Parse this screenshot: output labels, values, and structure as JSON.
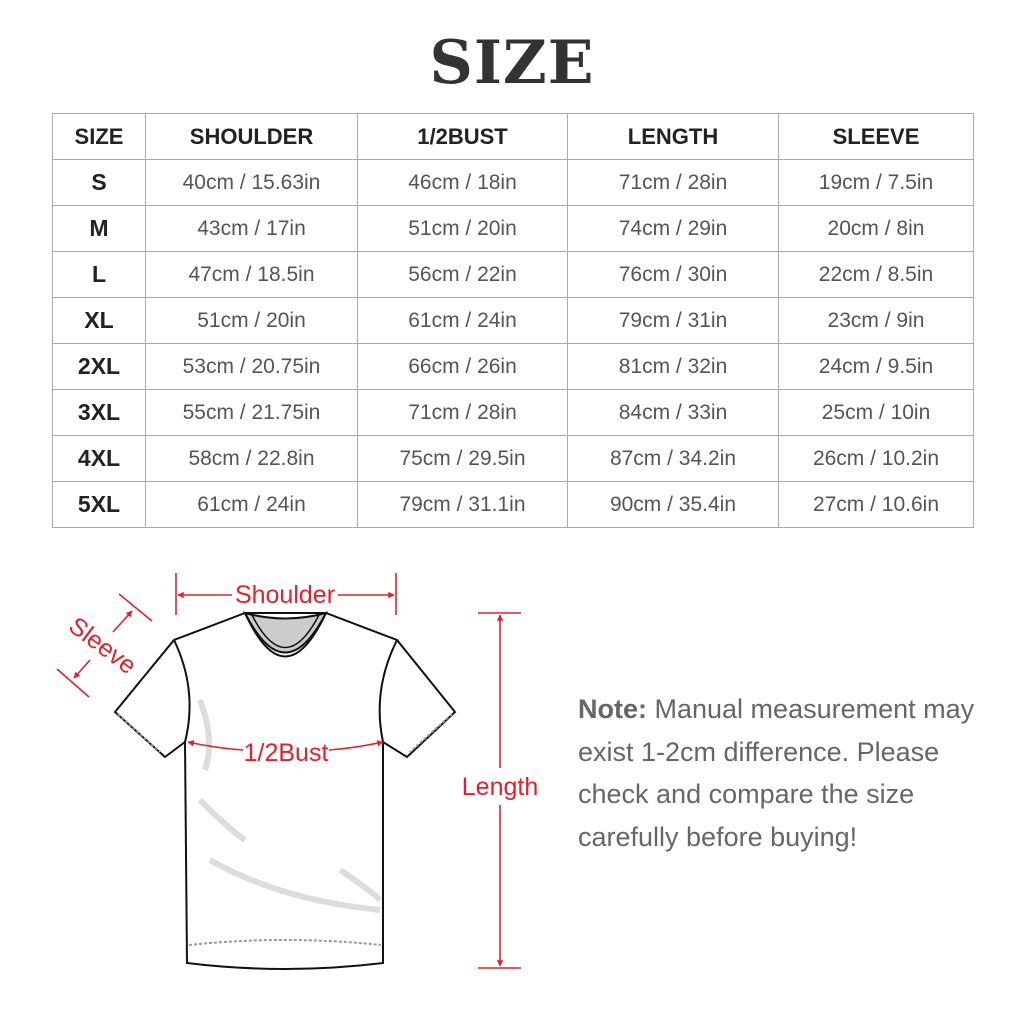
{
  "title": "SIZE",
  "table": {
    "headers": [
      "SIZE",
      "SHOULDER",
      "1/2BUST",
      "LENGTH",
      "SLEEVE"
    ],
    "rows": [
      [
        "S",
        "40cm / 15.63in",
        "46cm / 18in",
        "71cm / 28in",
        "19cm / 7.5in"
      ],
      [
        "M",
        "43cm / 17in",
        "51cm / 20in",
        "74cm / 29in",
        "20cm / 8in"
      ],
      [
        "L",
        "47cm / 18.5in",
        "56cm / 22in",
        "76cm / 30in",
        "22cm / 8.5in"
      ],
      [
        "XL",
        "51cm / 20in",
        "61cm / 24in",
        "79cm / 31in",
        "23cm / 9in"
      ],
      [
        "2XL",
        "53cm / 20.75in",
        "66cm / 26in",
        "81cm / 32in",
        "24cm / 9.5in"
      ],
      [
        "3XL",
        "55cm / 21.75in",
        "71cm / 28in",
        "84cm / 33in",
        "25cm / 10in"
      ],
      [
        "4XL",
        "58cm / 22.8in",
        "75cm / 29.5in",
        "87cm / 34.2in",
        "26cm / 10.2in"
      ],
      [
        "5XL",
        "61cm / 24in",
        "79cm / 31.1in",
        "90cm / 35.4in",
        "27cm / 10.6in"
      ]
    ]
  },
  "diagram": {
    "shoulder": "Shoulder",
    "sleeve": "Sleeve",
    "bust": "1/2Bust",
    "length": "Length",
    "accent": "#e4202b"
  },
  "note": {
    "label": "Note:",
    "text": " Manual measurement may exist 1-2cm difference. Please check and compare the size carefully before buying!"
  }
}
